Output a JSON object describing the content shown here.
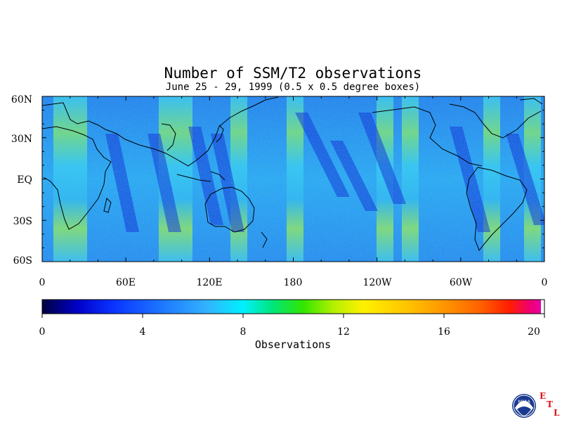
{
  "title": "Number of SSM/T2 observations",
  "subtitle": "June 25 - 29, 1999 (0.5 x 0.5 degree boxes)",
  "lat_labels": [
    "60N",
    "30N",
    "EQ",
    "30S",
    "60S"
  ],
  "lon_labels": [
    "0",
    "60E",
    "120E",
    "180",
    "120W",
    "60W",
    "0"
  ],
  "colorbar": {
    "title": "Observations",
    "ticks": [
      "0",
      "4",
      "8",
      "12",
      "16",
      "20"
    ],
    "min": 0,
    "max": 20,
    "colors": [
      "#000040",
      "#0000c8",
      "#0a32ff",
      "#1e78ff",
      "#32b4ff",
      "#00f0ff",
      "#00e678",
      "#32e600",
      "#b4f000",
      "#fff000",
      "#ffc800",
      "#ff9600",
      "#ff6400",
      "#ff1e00",
      "#f0006e",
      "#e600b4"
    ]
  },
  "logo": {
    "agency": "NOAA",
    "lab_letters": [
      "E",
      "T",
      "L"
    ]
  }
}
